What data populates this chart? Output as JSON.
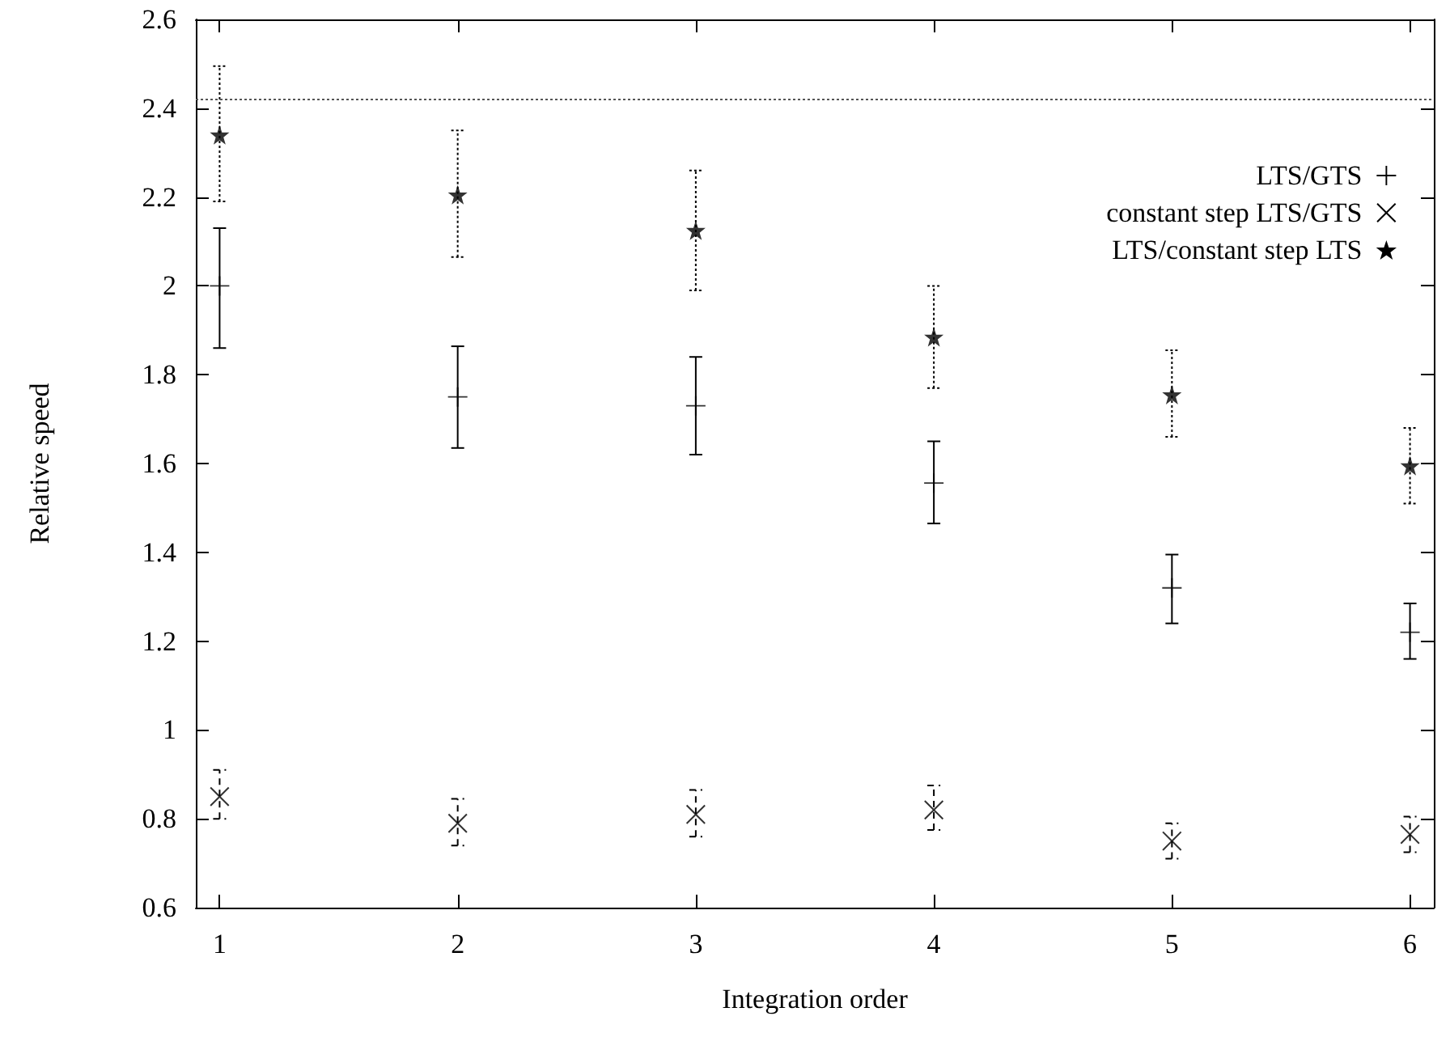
{
  "chart_data": {
    "type": "scatter",
    "xlabel": "Integration order",
    "ylabel": "Relative speed",
    "x": [
      1,
      2,
      3,
      4,
      5,
      6
    ],
    "series": [
      {
        "name": "LTS/GTS",
        "color": "#000000",
        "marker": "plus",
        "line_style": "solid",
        "values": [
          2.0,
          1.75,
          1.73,
          1.556,
          1.32,
          1.22
        ],
        "errors": [
          [
            1.86,
            2.13
          ],
          [
            1.635,
            1.864
          ],
          [
            1.62,
            1.84
          ],
          [
            1.465,
            1.65
          ],
          [
            1.24,
            1.395
          ],
          [
            1.16,
            1.285
          ]
        ]
      },
      {
        "name": "constant step LTS/GTS",
        "color": "#000000",
        "marker": "cross",
        "line_style": "dashed",
        "values": [
          0.85,
          0.79,
          0.81,
          0.82,
          0.75,
          0.765
        ],
        "errors": [
          [
            0.8,
            0.91
          ],
          [
            0.74,
            0.845
          ],
          [
            0.76,
            0.865
          ],
          [
            0.775,
            0.875
          ],
          [
            0.71,
            0.79
          ],
          [
            0.725,
            0.805
          ]
        ]
      },
      {
        "name": "LTS/constant step LTS",
        "color": "#000000",
        "marker": "star",
        "line_style": "dotted",
        "values": [
          2.34,
          2.205,
          2.125,
          1.885,
          1.755,
          1.595
        ],
        "errors": [
          [
            2.19,
            2.495
          ],
          [
            2.065,
            2.35
          ],
          [
            1.99,
            2.26
          ],
          [
            1.77,
            2.0
          ],
          [
            1.66,
            1.855
          ],
          [
            1.51,
            1.68
          ]
        ]
      }
    ],
    "ref_lines": [
      {
        "axis": "y",
        "value": 2.42,
        "color": "#555555",
        "line_style": "dotted"
      }
    ],
    "xlim": [
      0.9,
      6.1
    ],
    "xticks": [
      1,
      2,
      3,
      4,
      5,
      6
    ],
    "ylim": [
      0.6,
      2.6
    ],
    "yticks": [
      0.6,
      0.8,
      1.0,
      1.2,
      1.4,
      1.6,
      1.8,
      2.0,
      2.2,
      2.4,
      2.6
    ],
    "grid": false,
    "legend": "top right"
  }
}
